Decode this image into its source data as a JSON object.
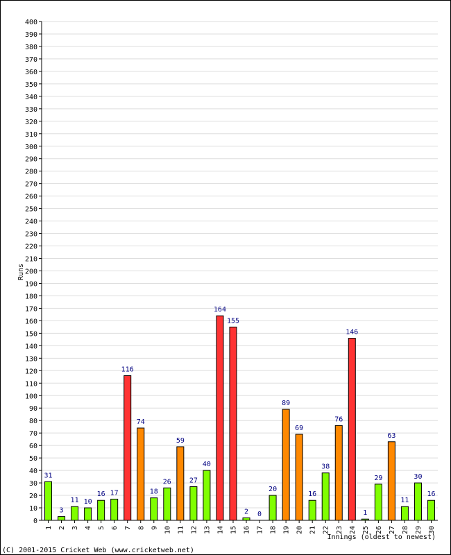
{
  "chart_data": {
    "type": "bar",
    "ylabel": "Runs",
    "xlabel": "Innings (oldest to newest)",
    "ylim": [
      0,
      400
    ],
    "ytick_step": 10,
    "grid": true,
    "categories": [
      "1",
      "2",
      "3",
      "4",
      "5",
      "6",
      "7",
      "8",
      "9",
      "10",
      "11",
      "12",
      "13",
      "14",
      "15",
      "16",
      "17",
      "18",
      "19",
      "20",
      "21",
      "22",
      "23",
      "24",
      "25",
      "26",
      "27",
      "28",
      "29",
      "30"
    ],
    "values": [
      31,
      3,
      11,
      10,
      16,
      17,
      116,
      74,
      18,
      26,
      59,
      27,
      40,
      164,
      155,
      2,
      0,
      20,
      89,
      69,
      16,
      38,
      76,
      146,
      1,
      29,
      63,
      11,
      30,
      16
    ],
    "colors": {
      "under_50": "#80ff00",
      "fifty_plus": "#ff8800",
      "hundred_plus": "#ff3333",
      "label": "#000080",
      "grid": "#dddddd",
      "axis": "#000000"
    }
  },
  "copyright": "(C) 2001-2015 Cricket Web (www.cricketweb.net)"
}
